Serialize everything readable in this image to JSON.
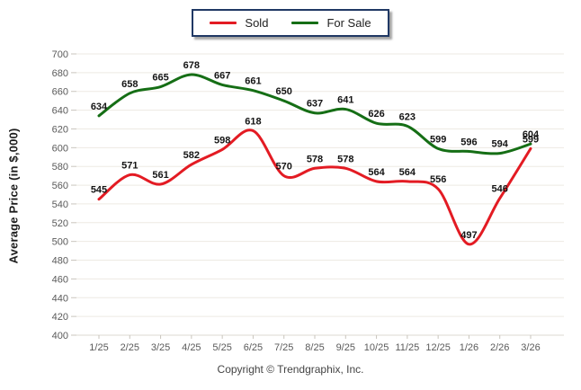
{
  "legend": {
    "items": [
      {
        "label": "Sold",
        "color": "#e31b23"
      },
      {
        "label": "For Sale",
        "color": "#156e15"
      }
    ],
    "border_color": "#203864"
  },
  "y_axis": {
    "title": "Average Price (in $,000)"
  },
  "footer": {
    "copyright": "Copyright © Trendgraphix, Inc."
  },
  "chart_data": {
    "type": "line",
    "title": "",
    "xlabel": "",
    "ylabel": "Average Price (in $,000)",
    "x": [
      "1/25",
      "2/25",
      "3/25",
      "4/25",
      "5/25",
      "6/25",
      "7/25",
      "8/25",
      "9/25",
      "10/25",
      "11/25",
      "12/25",
      "1/26",
      "2/26",
      "3/26"
    ],
    "series": [
      {
        "name": "Sold",
        "color": "#e31b23",
        "values": [
          545,
          571,
          561,
          582,
          598,
          618,
          570,
          578,
          578,
          564,
          564,
          556,
          497,
          546,
          599
        ]
      },
      {
        "name": "For Sale",
        "color": "#156e15",
        "values": [
          634,
          658,
          665,
          678,
          667,
          661,
          650,
          637,
          641,
          626,
          623,
          599,
          596,
          594,
          604
        ]
      }
    ],
    "ylim": [
      400,
      700
    ],
    "yticks": [
      400,
      420,
      440,
      460,
      480,
      500,
      520,
      540,
      560,
      580,
      600,
      620,
      640,
      660,
      680,
      700
    ],
    "grid": true,
    "gridline_color": "#edeae3",
    "tick_color": "#c9c5bd",
    "tick_label_color": "#5a5a5a",
    "data_label_color": "#141414",
    "legend_position": "top-center",
    "data_labels_shown": true
  }
}
